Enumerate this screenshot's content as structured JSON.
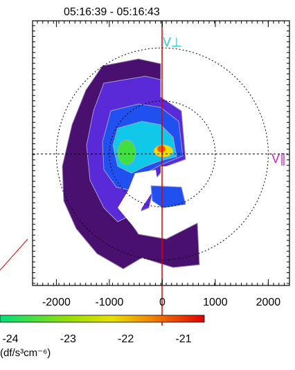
{
  "chart_data": {
    "type": "contour",
    "title": "05:16:39 - 05:16:43",
    "xlim": [
      -2450,
      2400
    ],
    "ylim": [
      -2450,
      2480
    ],
    "xticks": [
      -2000,
      -1000,
      0,
      1000,
      2000
    ],
    "circle_radii": [
      1000,
      2000
    ],
    "vertical_axis_label": "V⊥",
    "horizontal_axis_label": "V∥",
    "colorbar": {
      "lim": [
        -24.18,
        -20.64
      ],
      "ticks": [
        -24,
        -23,
        -22,
        -21
      ],
      "label": "(df/s³cm⁻⁶)"
    }
  }
}
